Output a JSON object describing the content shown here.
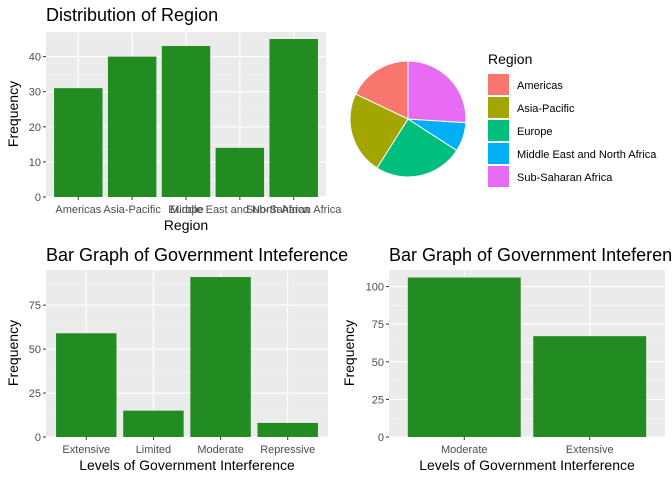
{
  "colors": {
    "bar_fill": "#228b22",
    "panel": "#ebebeb"
  },
  "chart_data": [
    {
      "type": "bar",
      "title": "Distribution of Region",
      "xlabel": "Region",
      "ylabel": "Frequency",
      "categories": [
        "Americas",
        "Asia-Pacific",
        "Europe",
        "Middle East and North Africa",
        "Sub-Saharan Africa"
      ],
      "values": [
        31,
        40,
        43,
        14,
        45
      ],
      "ylim": [
        0,
        47
      ],
      "yticks": [
        0,
        10,
        20,
        30,
        40
      ],
      "grid": true
    },
    {
      "type": "pie",
      "legend_title": "Region",
      "legend_position": "right",
      "categories": [
        "Americas",
        "Asia-Pacific",
        "Europe",
        "Middle East and North Africa",
        "Sub-Saharan Africa"
      ],
      "values": [
        31,
        40,
        43,
        14,
        45
      ],
      "colors": [
        "#f8766d",
        "#a3a500",
        "#00bf7d",
        "#00b0f6",
        "#e76bf3"
      ]
    },
    {
      "type": "bar",
      "title": "Bar Graph of Government Inteference",
      "xlabel": "Levels of Government Interference",
      "ylabel": "Frequency",
      "categories": [
        "Extensive",
        "Limited",
        "Moderate",
        "Repressive"
      ],
      "values": [
        59,
        15,
        91,
        8
      ],
      "ylim": [
        0,
        95
      ],
      "yticks": [
        0,
        25,
        50,
        75
      ],
      "grid": true
    },
    {
      "type": "bar",
      "title": "Bar Graph of Government Inteference",
      "xlabel": "Levels of Government Interference",
      "ylabel": "Frequency",
      "categories": [
        "Moderate",
        "Extensive"
      ],
      "values": [
        106,
        67
      ],
      "ylim": [
        0,
        111
      ],
      "yticks": [
        0,
        25,
        50,
        75,
        100
      ],
      "grid": true
    }
  ]
}
